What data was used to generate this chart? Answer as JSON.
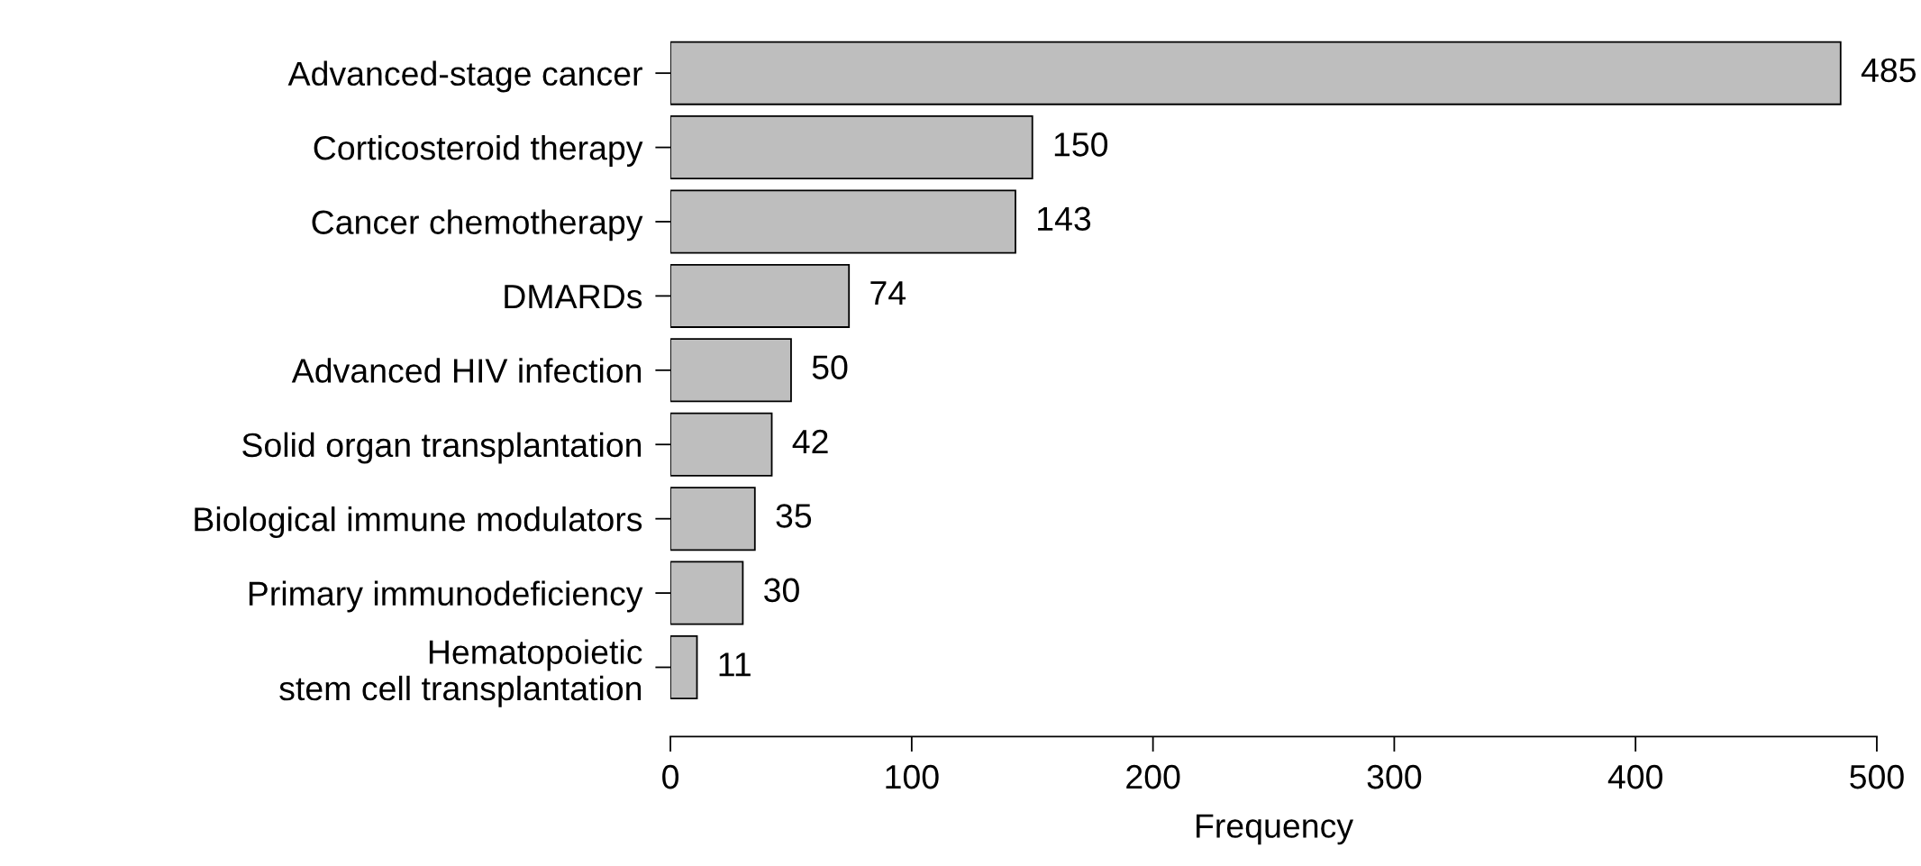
{
  "chart_data": {
    "type": "bar",
    "orientation": "horizontal",
    "xlabel": "Frequency",
    "categories": [
      "Advanced-stage cancer",
      "Corticosteroid therapy",
      "Cancer chemotherapy",
      "DMARDs",
      "Advanced HIV infection",
      "Solid organ transplantation",
      "Biological immune modulators",
      "Primary immunodeficiency",
      "Hematopoietic\nstem cell transplantation"
    ],
    "values": [
      485,
      150,
      143,
      74,
      50,
      42,
      35,
      30,
      11
    ],
    "color": "#bebebe",
    "data_labels": true,
    "grid": false,
    "legend": false,
    "xlim": [
      0,
      500
    ],
    "xticks": [
      0,
      100,
      200,
      300,
      400,
      500
    ]
  }
}
